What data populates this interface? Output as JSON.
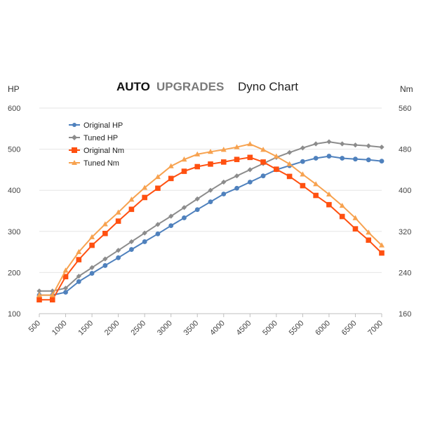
{
  "chart_data": {
    "type": "line",
    "title": {
      "brand_first": "AUTO",
      "brand_second": "UPGRADES",
      "subtitle": "Dyno Chart"
    },
    "left_axis_label": "HP",
    "right_axis_label": "Nm",
    "x": [
      500,
      750,
      1000,
      1250,
      1500,
      1750,
      2000,
      2250,
      2500,
      2750,
      3000,
      3250,
      3500,
      3750,
      4000,
      4250,
      4500,
      4750,
      5000,
      5250,
      5500,
      5750,
      6000,
      6250,
      6500,
      6750,
      7000
    ],
    "x_tick_labels": [
      "500",
      "1000",
      "1500",
      "2000",
      "2500",
      "3000",
      "3500",
      "4000",
      "4500",
      "5000",
      "5500",
      "6000",
      "6500",
      "7000"
    ],
    "xlim": [
      500,
      7000
    ],
    "ylim_left": [
      100,
      600
    ],
    "ylim_right": [
      160,
      560
    ],
    "y_left_tick_labels": [
      "100",
      "200",
      "300",
      "400",
      "500",
      "600"
    ],
    "y_right_tick_labels": [
      "160",
      "240",
      "320",
      "400",
      "480",
      "560"
    ],
    "series": [
      {
        "name": "Original HP",
        "axis": "left",
        "marker": "circle",
        "color": "#4f81bd",
        "values": [
          145,
          145,
          152,
          178,
          198,
          217,
          236,
          256,
          275,
          294,
          314,
          333,
          353,
          372,
          391,
          405,
          420,
          435,
          450,
          460,
          470,
          478,
          483,
          478,
          476,
          474,
          471
        ]
      },
      {
        "name": "Tuned HP",
        "axis": "left",
        "marker": "diamond",
        "color": "#8c8c8c",
        "values": [
          155,
          155,
          162,
          191,
          212,
          233,
          254,
          275,
          296,
          317,
          337,
          358,
          379,
          400,
          420,
          435,
          450,
          465,
          480,
          492,
          503,
          513,
          518,
          513,
          510,
          508,
          505
        ]
      },
      {
        "name": "Original Nm",
        "axis": "right",
        "marker": "square",
        "color": "#ff5010",
        "values": [
          187,
          187,
          232,
          265,
          293,
          316,
          340,
          363,
          386,
          404,
          423,
          437,
          446,
          451,
          455,
          460,
          464,
          455,
          441,
          427,
          409,
          390,
          372,
          349,
          325,
          303,
          278
        ]
      },
      {
        "name": "Tuned Nm",
        "axis": "right",
        "marker": "triangle",
        "color": "#f7a24f",
        "values": [
          196,
          196,
          244,
          280,
          309,
          334,
          357,
          382,
          405,
          426,
          447,
          460,
          470,
          475,
          479,
          484,
          490,
          479,
          466,
          451,
          431,
          412,
          392,
          370,
          346,
          318,
          293
        ]
      }
    ],
    "legend_position": "top-left",
    "grid": true
  }
}
